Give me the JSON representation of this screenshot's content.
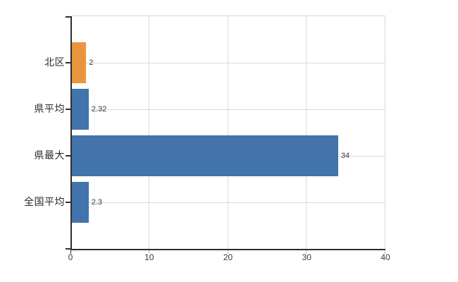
{
  "chart": {
    "background_color": "#ffffff",
    "grid_color": "#d9d9d9",
    "axis_color": "#2e2e2e",
    "tick_color_minor": "#bdbdbd",
    "text_color": "#3a3a3a"
  },
  "chart_data": {
    "type": "bar",
    "orientation": "horizontal",
    "categories": [
      "北区",
      "県平均",
      "県最大",
      "全国平均"
    ],
    "values": [
      2,
      2.32,
      34,
      2.3
    ],
    "value_labels": [
      "2",
      "2.32",
      "34",
      "2.3"
    ],
    "bar_colors": [
      "#e9953d",
      "#4274ab",
      "#4274ab",
      "#4274ab"
    ],
    "xlim": [
      0,
      40
    ],
    "xticks": [
      0,
      10,
      20,
      30,
      40
    ],
    "xtick_labels": [
      "0",
      "10",
      "20",
      "30",
      "40"
    ],
    "grid": true,
    "legend": false,
    "title": ""
  }
}
